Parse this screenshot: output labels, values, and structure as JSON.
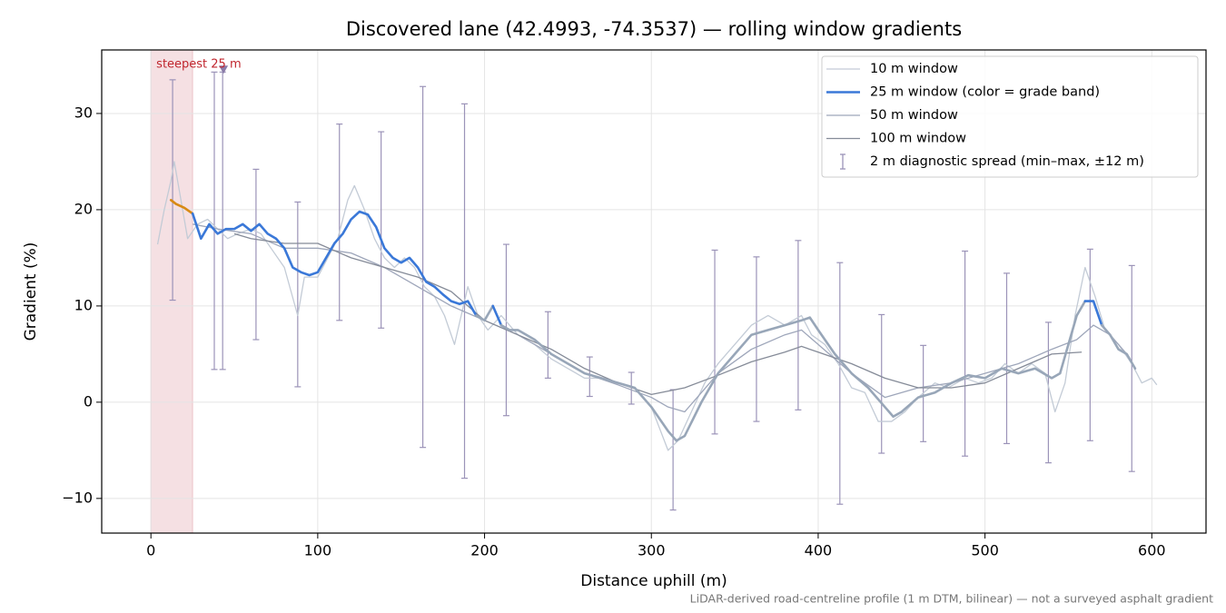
{
  "chart_data": {
    "type": "line",
    "title": "Discovered lane (42.4993, -74.3537) — rolling window gradients",
    "xlabel": "Distance uphill (m)",
    "ylabel": "Gradient (%)",
    "footnote": "LiDAR-derived road-centreline profile (1 m DTM, bilinear) — not a surveyed asphalt gradient",
    "xlim": [
      -29.5,
      632.5
    ],
    "ylim": [
      -13.6,
      36.6
    ],
    "xticks": [
      0,
      100,
      200,
      300,
      400,
      500,
      600
    ],
    "yticks": [
      {
        "value": -10,
        "label": "−10"
      },
      0,
      10,
      20,
      30
    ],
    "grid": true,
    "legend": "upper right",
    "highlight": {
      "text": "steepest 25 m",
      "x_start": 0,
      "x_end": 25,
      "color": "#d9848f",
      "marker_x": 43.5,
      "marker_y": 34.5,
      "marker_color": "#8a7ba8"
    },
    "series": [
      {
        "name": "10 m window",
        "color": "#c3cbd6",
        "width": 1.3,
        "x": [
          4,
          8,
          12,
          14,
          18,
          22,
          28,
          34,
          40,
          46,
          52,
          60,
          66,
          72,
          80,
          88,
          92,
          100,
          106,
          112,
          118,
          122,
          128,
          134,
          140,
          146,
          152,
          158,
          164,
          170,
          176,
          182,
          186,
          190,
          196,
          202,
          210,
          220,
          230,
          240,
          250,
          260,
          270,
          280,
          290,
          300,
          310,
          316,
          324,
          332,
          340,
          350,
          360,
          370,
          380,
          390,
          396,
          404,
          412,
          420,
          428,
          436,
          444,
          452,
          460,
          470,
          478,
          488,
          496,
          504,
          512,
          520,
          528,
          536,
          542,
          548,
          554,
          560,
          566,
          572,
          580,
          588,
          594,
          600,
          603
        ],
        "values": [
          16.4,
          20,
          23,
          25,
          21,
          17,
          18.5,
          19,
          18,
          17,
          17.5,
          18,
          17.5,
          16,
          14,
          9,
          13,
          13,
          15,
          17,
          21,
          22.5,
          20,
          17,
          15,
          14,
          15,
          14,
          12,
          11,
          9,
          6,
          9,
          12,
          9,
          7.5,
          9,
          7,
          6,
          4.5,
          3.5,
          2.5,
          2.5,
          2,
          1.5,
          -0.5,
          -5,
          -4,
          -1,
          2,
          4,
          6,
          8,
          9,
          8,
          9,
          7,
          6,
          4,
          1.5,
          1,
          -2,
          -2,
          -1,
          0.5,
          2,
          1.5,
          2.5,
          2,
          2.5,
          4,
          3,
          4,
          3,
          -1,
          2,
          9,
          14,
          11,
          7.5,
          6,
          4,
          2,
          2.5,
          1.8
        ]
      },
      {
        "name": "25 m window (color = grade band)",
        "color": "#3a78d8",
        "width": 2.6,
        "grade_bands": {
          "edges": [
            10,
            20
          ],
          "colors": [
            "#98a6b8",
            "#3a78d8",
            "#d88a14"
          ]
        },
        "x": [
          12,
          15,
          20,
          25,
          30,
          35,
          40,
          45,
          50,
          55,
          60,
          65,
          70,
          75,
          80,
          85,
          90,
          95,
          100,
          105,
          110,
          115,
          120,
          125,
          130,
          135,
          140,
          145,
          150,
          155,
          160,
          165,
          170,
          175,
          180,
          185,
          190,
          195,
          200,
          205,
          210,
          215,
          220,
          230,
          240,
          250,
          260,
          270,
          280,
          290,
          300,
          310,
          315,
          320,
          330,
          340,
          350,
          360,
          370,
          380,
          390,
          395,
          400,
          410,
          420,
          430,
          440,
          445,
          450,
          460,
          470,
          480,
          490,
          500,
          510,
          520,
          530,
          540,
          545,
          550,
          555,
          560,
          565,
          570,
          575,
          580,
          585,
          590
        ],
        "values": [
          21,
          20.6,
          20.2,
          19.6,
          17,
          18.5,
          17.5,
          18,
          18,
          18.5,
          17.8,
          18.5,
          17.5,
          17,
          16,
          14,
          13.5,
          13.2,
          13.5,
          15,
          16.5,
          17.5,
          19,
          19.8,
          19.5,
          18.2,
          16,
          15,
          14.5,
          15,
          14,
          12.5,
          12,
          11.2,
          10.5,
          10.2,
          10.5,
          9,
          8.5,
          10,
          8,
          7.5,
          7.5,
          6.5,
          5,
          4,
          3,
          2.5,
          2,
          1.5,
          -0.5,
          -3,
          -4,
          -3.5,
          0,
          3,
          5,
          7,
          7.5,
          8,
          8.5,
          8.8,
          7.5,
          5,
          3,
          1.5,
          -0.5,
          -1.5,
          -1,
          0.5,
          1,
          2,
          2.8,
          2.5,
          3.5,
          3,
          3.5,
          2.5,
          3,
          6,
          9,
          10.5,
          10.5,
          8,
          7,
          5.5,
          5,
          3.5
        ]
      },
      {
        "name": "50 m window",
        "color": "#9ea6ba",
        "width": 1.3,
        "x": [
          25,
          40,
          60,
          80,
          100,
          120,
          140,
          160,
          180,
          200,
          220,
          240,
          260,
          280,
          300,
          310,
          320,
          330,
          340,
          360,
          380,
          390,
          400,
          420,
          440,
          460,
          480,
          500,
          520,
          540,
          555,
          565,
          575,
          585
        ],
        "values": [
          18.5,
          18,
          17.5,
          16,
          16,
          15.5,
          14,
          12,
          10,
          8.5,
          7,
          5,
          3,
          1.8,
          0.5,
          -0.5,
          -1,
          1,
          3,
          5.5,
          7,
          7.5,
          6,
          3,
          0.5,
          1.5,
          2,
          3,
          4,
          5.5,
          6.5,
          8,
          7,
          5
        ]
      },
      {
        "name": "100 m window",
        "color": "#858b98",
        "width": 1.3,
        "x": [
          50,
          60,
          80,
          100,
          120,
          140,
          160,
          180,
          200,
          220,
          240,
          260,
          280,
          300,
          320,
          340,
          360,
          380,
          390,
          400,
          420,
          440,
          460,
          480,
          500,
          520,
          540,
          558
        ],
        "values": [
          17.5,
          17,
          16.5,
          16.5,
          15,
          14,
          13,
          11.5,
          8.5,
          7,
          5.5,
          3.5,
          2,
          0.8,
          1.5,
          2.8,
          4.2,
          5.2,
          5.8,
          5.2,
          4,
          2.5,
          1.5,
          1.5,
          2,
          3.5,
          5,
          5.2
        ]
      }
    ],
    "errorbars": {
      "name": "2 m diagnostic spread (min–max, ±12 m)",
      "color": "#9b93b8",
      "x": [
        13,
        38,
        43,
        63,
        88,
        113,
        138,
        163,
        188,
        213,
        238,
        263,
        288,
        313,
        338,
        363,
        388,
        413,
        438,
        463,
        488,
        513,
        538,
        563,
        588
      ],
      "low": [
        10.6,
        3.4,
        3.4,
        6.5,
        1.6,
        8.5,
        7.7,
        -4.7,
        -7.9,
        -1.4,
        2.5,
        0.6,
        -0.2,
        -11.2,
        -3.3,
        -2.0,
        -0.8,
        -10.6,
        -5.3,
        -4.1,
        -5.6,
        -4.3,
        -6.3,
        -4.0,
        -7.2
      ],
      "high": [
        33.5,
        34.3,
        34.3,
        24.2,
        20.8,
        28.9,
        28.1,
        32.8,
        31.0,
        16.4,
        9.4,
        4.7,
        3.1,
        1.3,
        15.8,
        15.1,
        16.8,
        14.5,
        9.1,
        5.9,
        15.7,
        13.4,
        8.3,
        15.9,
        14.2
      ]
    }
  }
}
